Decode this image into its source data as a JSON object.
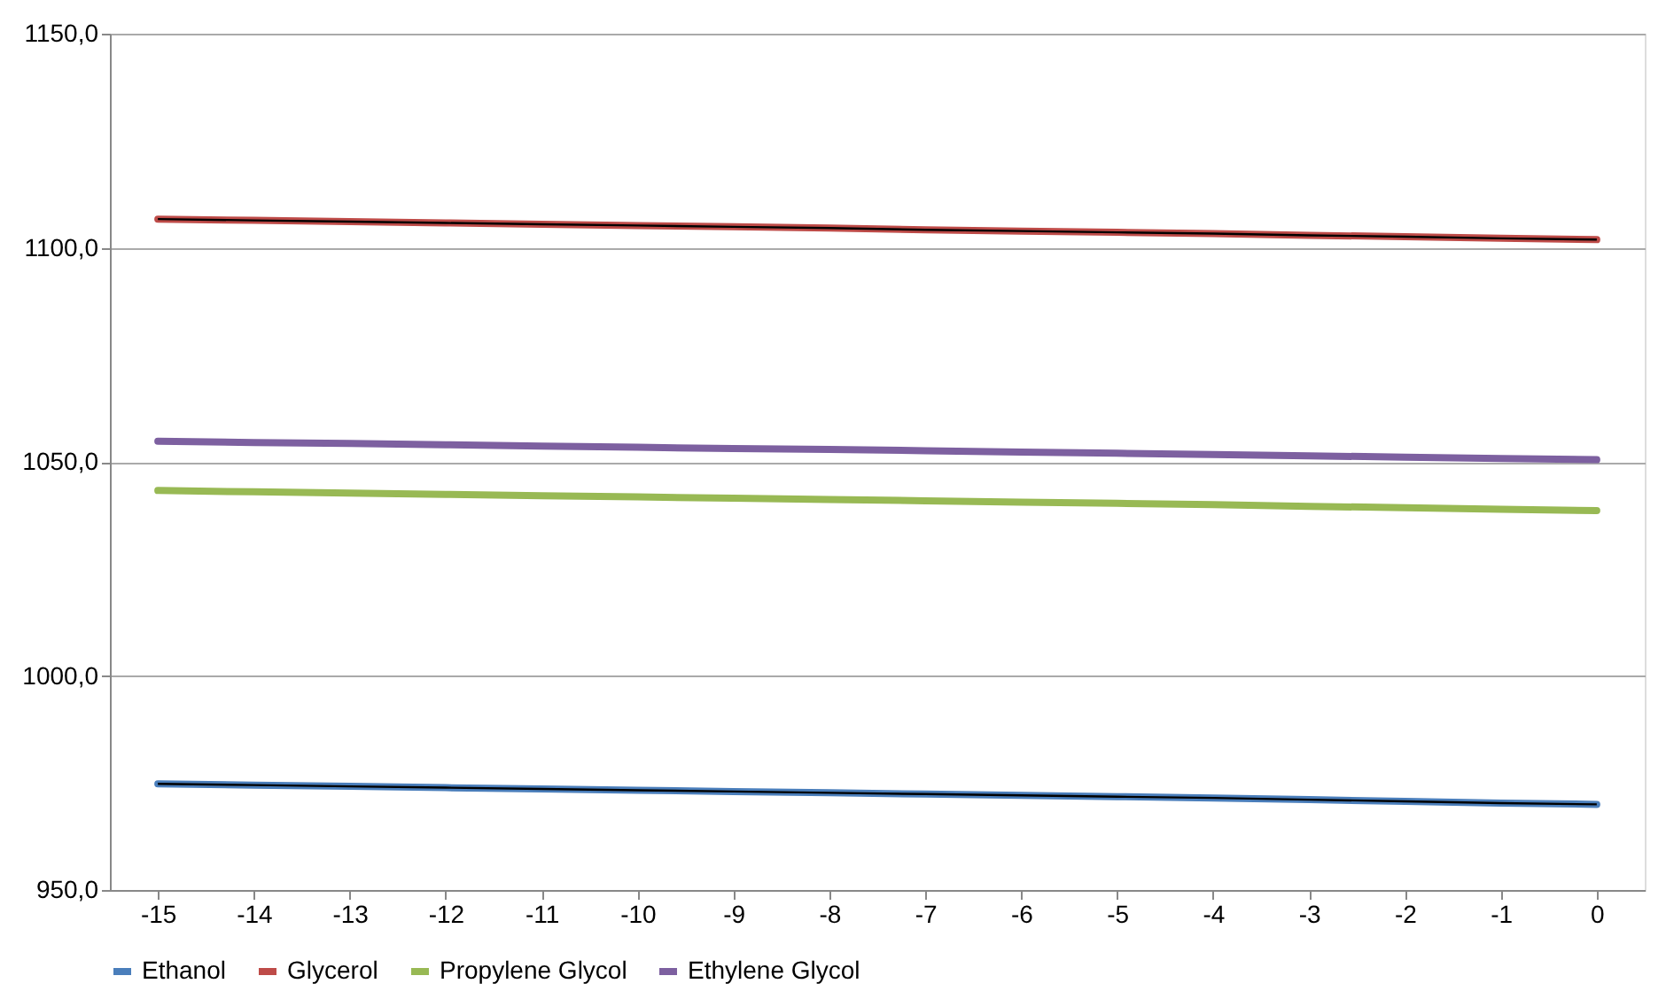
{
  "chart_data": {
    "type": "line",
    "categories": [
      "-15",
      "-14",
      "-13",
      "-12",
      "-11",
      "-10",
      "-9",
      "-8",
      "-7",
      "-6",
      "-5",
      "-4",
      "-3",
      "-2",
      "-1",
      "0"
    ],
    "series": [
      {
        "name": "Ethanol",
        "color": "#4a7ebb",
        "values": [
          974.8,
          974.5,
          974.2,
          973.9,
          973.6,
          973.3,
          973.0,
          972.7,
          972.4,
          972.1,
          971.8,
          971.5,
          971.1,
          970.7,
          970.3,
          970.0
        ]
      },
      {
        "name": "Glycerol",
        "color": "#be4b48",
        "values": [
          1106.7,
          1106.4,
          1106.1,
          1105.8,
          1105.5,
          1105.2,
          1104.9,
          1104.6,
          1104.2,
          1103.9,
          1103.6,
          1103.3,
          1102.9,
          1102.6,
          1102.2,
          1101.9
        ]
      },
      {
        "name": "Propylene Glycol",
        "color": "#98b954",
        "values": [
          1043.3,
          1043.0,
          1042.7,
          1042.4,
          1042.1,
          1041.8,
          1041.5,
          1041.2,
          1040.9,
          1040.6,
          1040.3,
          1040.0,
          1039.6,
          1039.3,
          1038.9,
          1038.6
        ]
      },
      {
        "name": "Ethylene Glycol",
        "color": "#7d60a0",
        "values": [
          1054.8,
          1054.5,
          1054.3,
          1054.0,
          1053.7,
          1053.4,
          1053.1,
          1052.9,
          1052.6,
          1052.3,
          1052.0,
          1051.7,
          1051.4,
          1051.1,
          1050.8,
          1050.5
        ]
      },
      {
        "color": "#000000",
        "values": [
          974.8,
          974.5,
          974.2,
          973.9,
          973.6,
          973.3,
          973.0,
          972.7,
          972.4,
          972.1,
          971.8,
          971.5,
          971.1,
          970.7,
          970.3,
          970.0
        ]
      },
      {
        "color": "#000000",
        "values": [
          1106.7,
          1106.4,
          1106.1,
          1105.8,
          1105.5,
          1105.2,
          1104.9,
          1104.6,
          1104.2,
          1103.9,
          1103.6,
          1103.3,
          1102.9,
          1102.6,
          1102.2,
          1101.9
        ]
      }
    ],
    "ylim": [
      950,
      1150
    ],
    "yticks": [
      {
        "value": 950,
        "label": "950,0"
      },
      {
        "value": 1000,
        "label": "1000,0"
      },
      {
        "value": 1050,
        "label": "1050,0"
      },
      {
        "value": 1100,
        "label": "1100,0"
      },
      {
        "value": 1150,
        "label": "1150,0"
      }
    ],
    "grid": "y",
    "legend": "bottom"
  }
}
